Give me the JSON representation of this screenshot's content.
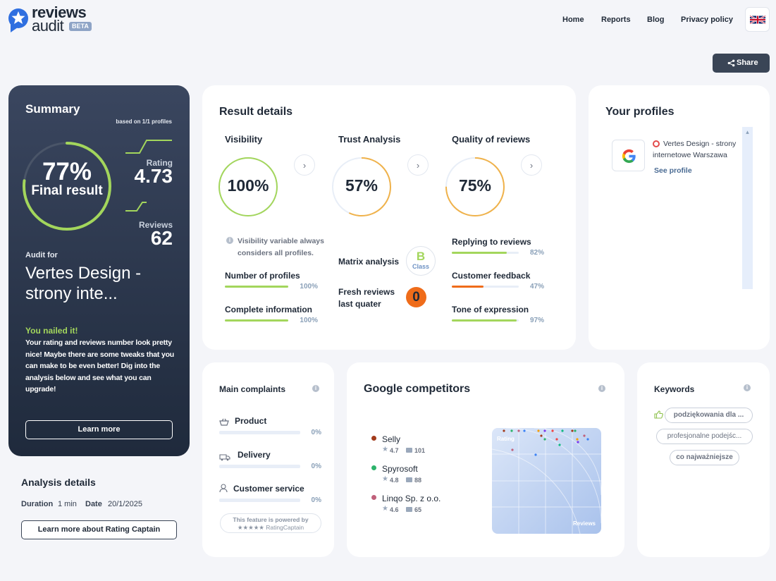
{
  "brand": {
    "line1": "reviews",
    "line2": "audit",
    "badge": "BETA"
  },
  "nav": {
    "home": "Home",
    "reports": "Reports",
    "blog": "Blog",
    "privacy": "Privacy policy"
  },
  "share_label": "Share",
  "summary": {
    "title": "Summary",
    "based_on": "based on 1/1 profiles",
    "final_pct": "77%",
    "final_label": "Final result",
    "final_value": 0.77,
    "rating_label": "Rating",
    "rating_value": "4.73",
    "reviews_label": "Reviews",
    "reviews_value": "62",
    "audit_for": "Audit for",
    "company": "Vertes Design - strony inte...",
    "nailed": "You nailed it!",
    "message": "Your rating and reviews number look pretty nice! Maybe there are some tweaks that you can make to be even better! Dig into the analysis below and see what you can upgrade!",
    "learn_more": "Learn more"
  },
  "analysis": {
    "title": "Analysis details",
    "duration_label": "Duration",
    "duration_value": "1 min",
    "date_label": "Date",
    "date_value": "20/1/2025",
    "button": "Learn more about Rating Captain"
  },
  "result": {
    "title": "Result details",
    "visibility": {
      "title": "Visibility",
      "pct": "100%",
      "value": 1.0,
      "note": "Visibility variable always considers all profiles.",
      "items": [
        {
          "label": "Number of profiles",
          "pct": "100%",
          "value": 1.0
        },
        {
          "label": "Complete information",
          "pct": "100%",
          "value": 1.0
        }
      ]
    },
    "trust": {
      "title": "Trust Analysis",
      "pct": "57%",
      "value": 0.57,
      "matrix_label": "Matrix analysis",
      "matrix_class": "B",
      "matrix_class_label": "Class",
      "fresh_label": "Fresh reviews last quater",
      "fresh_value": "0"
    },
    "quality": {
      "title": "Quality of reviews",
      "pct": "75%",
      "value": 0.75,
      "items": [
        {
          "label": "Replying to reviews",
          "pct": "82%",
          "value": 0.82,
          "color": "#a3d65c"
        },
        {
          "label": "Customer feedback",
          "pct": "47%",
          "value": 0.47,
          "color": "#ef6c1a"
        },
        {
          "label": "Tone of expression",
          "pct": "97%",
          "value": 0.97,
          "color": "#a3d65c"
        }
      ]
    }
  },
  "profiles": {
    "title": "Your profiles",
    "name": "Vertes Design - strony internetowe Warszawa",
    "see": "See profile",
    "icon": "google-icon"
  },
  "complaints": {
    "title": "Main complaints",
    "items": [
      {
        "label": "Product",
        "pct": "0%",
        "icon": "basket-icon"
      },
      {
        "label": "Delivery",
        "pct": "0%",
        "icon": "truck-icon"
      },
      {
        "label": "Customer service",
        "pct": "0%",
        "icon": "person-icon"
      }
    ],
    "powered_1": "This feature is powered by",
    "powered_2": "★★★★★ RatingCaptain"
  },
  "competitors": {
    "title": "Google competitors",
    "items": [
      {
        "name": "Selly",
        "rating": "4.7",
        "reviews": "101",
        "color": "#a23b1c"
      },
      {
        "name": "Spyrosoft",
        "rating": "4.8",
        "reviews": "88",
        "color": "#2db36b"
      },
      {
        "name": "Linqo Sp. z o.o.",
        "rating": "4.6",
        "reviews": "65",
        "color": "#c0607a"
      }
    ],
    "chart_y": "Rating",
    "chart_x": "Reviews"
  },
  "keywords": {
    "title": "Keywords",
    "items": [
      "podziękowania dla ...",
      "profesjonalne podejśc...",
      "co najważniejsze"
    ]
  },
  "colors": {
    "accent_green": "#a3d65c",
    "accent_orange": "#f0a84a",
    "dark": "#2c3649"
  }
}
